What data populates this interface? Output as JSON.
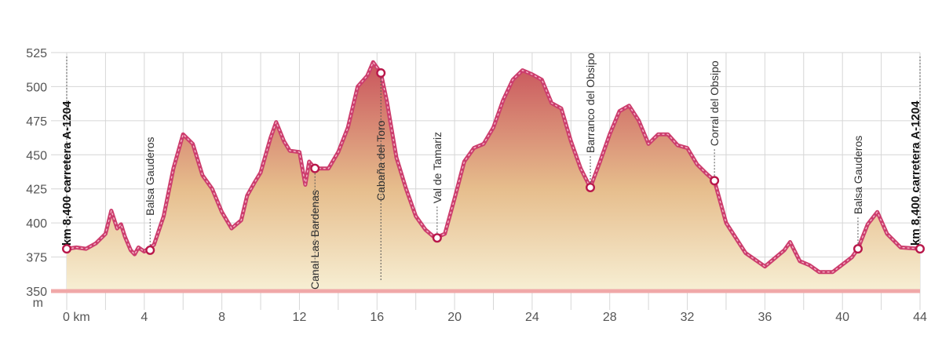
{
  "chart_data": {
    "type": "area",
    "title": "",
    "xlabel": "",
    "ylabel": "",
    "y_unit": "m",
    "xlim": [
      0,
      44
    ],
    "ylim": [
      350,
      525
    ],
    "grid": true,
    "x_ticks": [
      {
        "value": 0,
        "label": "0 km"
      },
      {
        "value": 4,
        "label": "4"
      },
      {
        "value": 8,
        "label": "8"
      },
      {
        "value": 12,
        "label": "12"
      },
      {
        "value": 16,
        "label": "16"
      },
      {
        "value": 20,
        "label": "20"
      },
      {
        "value": 24,
        "label": "24"
      },
      {
        "value": 28,
        "label": "28"
      },
      {
        "value": 32,
        "label": "32"
      },
      {
        "value": 36,
        "label": "36"
      },
      {
        "value": 40,
        "label": "40"
      },
      {
        "value": 44,
        "label": "44"
      }
    ],
    "y_ticks": [
      {
        "value": 525,
        "label": "525"
      },
      {
        "value": 500,
        "label": "500"
      },
      {
        "value": 475,
        "label": "475"
      },
      {
        "value": 450,
        "label": "450"
      },
      {
        "value": 425,
        "label": "425"
      },
      {
        "value": 400,
        "label": "400"
      },
      {
        "value": 375,
        "label": "375"
      },
      {
        "value": 350,
        "label": "350"
      }
    ],
    "profile": [
      [
        0.0,
        381
      ],
      [
        0.5,
        382
      ],
      [
        1.0,
        381
      ],
      [
        1.5,
        385
      ],
      [
        2.0,
        392
      ],
      [
        2.3,
        409
      ],
      [
        2.6,
        396
      ],
      [
        2.8,
        399
      ],
      [
        3.0,
        390
      ],
      [
        3.3,
        380
      ],
      [
        3.5,
        377
      ],
      [
        3.7,
        382
      ],
      [
        4.0,
        379
      ],
      [
        4.5,
        384
      ],
      [
        5.0,
        405
      ],
      [
        5.5,
        440
      ],
      [
        6.0,
        465
      ],
      [
        6.5,
        458
      ],
      [
        7.0,
        435
      ],
      [
        7.5,
        425
      ],
      [
        8.0,
        408
      ],
      [
        8.5,
        396
      ],
      [
        9.0,
        402
      ],
      [
        9.3,
        420
      ],
      [
        9.7,
        430
      ],
      [
        10.0,
        437
      ],
      [
        10.5,
        462
      ],
      [
        10.8,
        474
      ],
      [
        11.2,
        460
      ],
      [
        11.5,
        453
      ],
      [
        12.0,
        452
      ],
      [
        12.3,
        428
      ],
      [
        12.5,
        445
      ],
      [
        12.8,
        440
      ],
      [
        13.5,
        440
      ],
      [
        14.0,
        452
      ],
      [
        14.5,
        470
      ],
      [
        15.0,
        500
      ],
      [
        15.5,
        508
      ],
      [
        15.8,
        518
      ],
      [
        16.2,
        510
      ],
      [
        16.5,
        490
      ],
      [
        17.0,
        448
      ],
      [
        17.5,
        425
      ],
      [
        18.0,
        405
      ],
      [
        18.5,
        395
      ],
      [
        19.0,
        389
      ],
      [
        19.5,
        392
      ],
      [
        20.0,
        418
      ],
      [
        20.5,
        445
      ],
      [
        21.0,
        455
      ],
      [
        21.5,
        458
      ],
      [
        22.0,
        470
      ],
      [
        22.5,
        490
      ],
      [
        23.0,
        505
      ],
      [
        23.5,
        512
      ],
      [
        24.0,
        509
      ],
      [
        24.5,
        505
      ],
      [
        25.0,
        488
      ],
      [
        25.5,
        484
      ],
      [
        26.0,
        460
      ],
      [
        26.5,
        440
      ],
      [
        27.0,
        426
      ],
      [
        27.5,
        445
      ],
      [
        28.0,
        465
      ],
      [
        28.5,
        482
      ],
      [
        29.0,
        486
      ],
      [
        29.5,
        475
      ],
      [
        30.0,
        458
      ],
      [
        30.5,
        465
      ],
      [
        31.0,
        465
      ],
      [
        31.5,
        457
      ],
      [
        32.0,
        455
      ],
      [
        32.5,
        443
      ],
      [
        33.0,
        436
      ],
      [
        33.4,
        431
      ],
      [
        34.0,
        400
      ],
      [
        35.0,
        378
      ],
      [
        36.0,
        368
      ],
      [
        36.5,
        374
      ],
      [
        37.0,
        380
      ],
      [
        37.3,
        386
      ],
      [
        37.8,
        372
      ],
      [
        38.3,
        369
      ],
      [
        38.8,
        364
      ],
      [
        39.5,
        364
      ],
      [
        40.5,
        375
      ],
      [
        40.8,
        381
      ],
      [
        41.3,
        399
      ],
      [
        41.8,
        408
      ],
      [
        42.3,
        392
      ],
      [
        43.0,
        382
      ],
      [
        44.0,
        381
      ]
    ],
    "waypoints": [
      {
        "km": 0.0,
        "elevation": 381,
        "label": "km 8,400 carretera A-1204",
        "bold": true,
        "side": "above"
      },
      {
        "km": 4.3,
        "elevation": 380,
        "label": "Balsa Gauderos",
        "bold": false,
        "side": "above"
      },
      {
        "km": 12.8,
        "elevation": 440,
        "label": "Canal Las Bardenas",
        "bold": false,
        "side": "below"
      },
      {
        "km": 16.2,
        "elevation": 510,
        "label": "Cabaña del Toro",
        "bold": false,
        "side": "below"
      },
      {
        "km": 19.1,
        "elevation": 389,
        "label": "Val de Tamariz",
        "bold": false,
        "side": "above"
      },
      {
        "km": 27.0,
        "elevation": 426,
        "label": "Barranco del Obsipo",
        "bold": false,
        "side": "above"
      },
      {
        "km": 33.4,
        "elevation": 431,
        "label": "Corral del Obsipo",
        "bold": false,
        "side": "above"
      },
      {
        "km": 40.8,
        "elevation": 381,
        "label": "Balsa Gauderos",
        "bold": false,
        "side": "above"
      },
      {
        "km": 44.0,
        "elevation": 381,
        "label": "km 8,400 carretera A-1204",
        "bold": true,
        "side": "above"
      }
    ],
    "colors": {
      "fill_top": "#c9545c",
      "fill_mid": "#e6bd8c",
      "fill_bottom": "#f7efd4",
      "line": "#cc3d6d",
      "line_highlight": "#f3b6c7",
      "baseline": "#f0a8a8",
      "grid": "#d6d6d6",
      "marker_stroke": "#b8174a"
    }
  }
}
